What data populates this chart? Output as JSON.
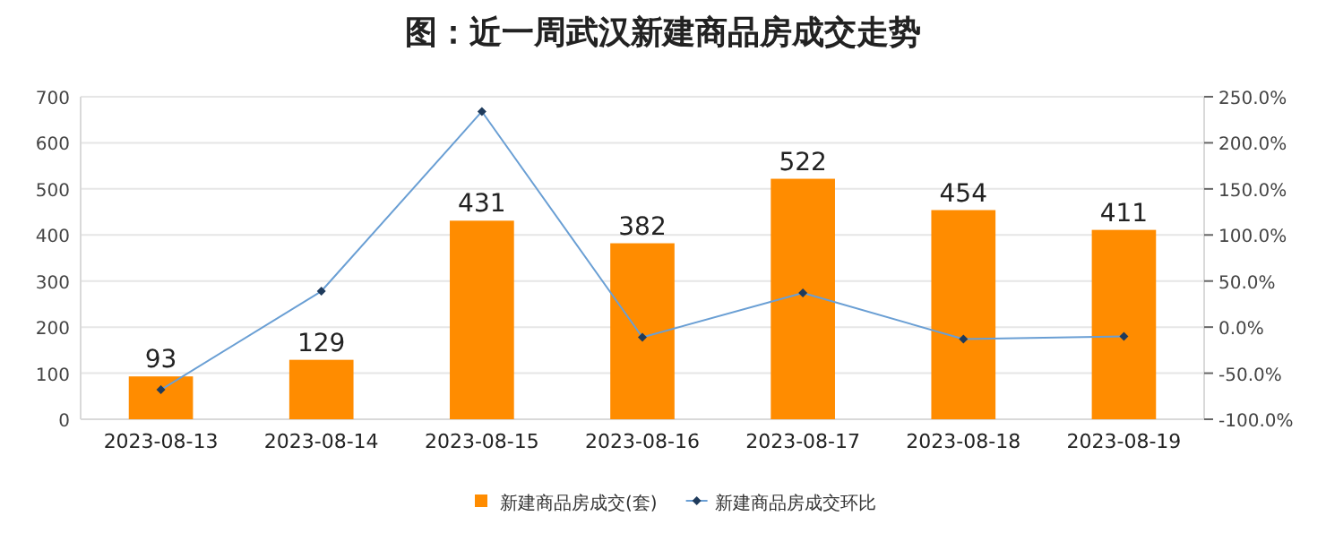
{
  "chart_data": {
    "type": "bar",
    "title": "图：近一周武汉新建商品房成交走势",
    "categories": [
      "2023-08-13",
      "2023-08-14",
      "2023-08-15",
      "2023-08-16",
      "2023-08-17",
      "2023-08-18",
      "2023-08-19"
    ],
    "series": [
      {
        "name": "新建商品房成交(套)",
        "color": "#ff8c00",
        "values": [
          93,
          129,
          431,
          382,
          522,
          454,
          411
        ],
        "value_labels": [
          "93",
          "129",
          "431",
          "382",
          "522",
          "454",
          "411"
        ]
      },
      {
        "name": "新建商品房成交环比",
        "type": "line",
        "axis": "y2",
        "color": "#6a9fd4",
        "marker": "diamond",
        "values": [
          -68,
          39,
          234,
          -11,
          37,
          -13,
          -10
        ]
      }
    ],
    "ylim": [
      0,
      700
    ],
    "yticks": [
      0,
      100,
      200,
      300,
      400,
      500,
      600,
      700
    ],
    "y2lim": [
      -100,
      250
    ],
    "y2ticks": [
      {
        "value": -100,
        "label": "-100.0%"
      },
      {
        "value": -50,
        "label": "-50.0%"
      },
      {
        "value": 0,
        "label": "0.0%"
      },
      {
        "value": 50,
        "label": "50.0%"
      },
      {
        "value": 100,
        "label": "100.0%"
      },
      {
        "value": 150,
        "label": "150.0%"
      },
      {
        "value": 200,
        "label": "200.0%"
      },
      {
        "value": 250,
        "label": "250.0%"
      }
    ],
    "grid": "y",
    "legend": "bottom"
  }
}
